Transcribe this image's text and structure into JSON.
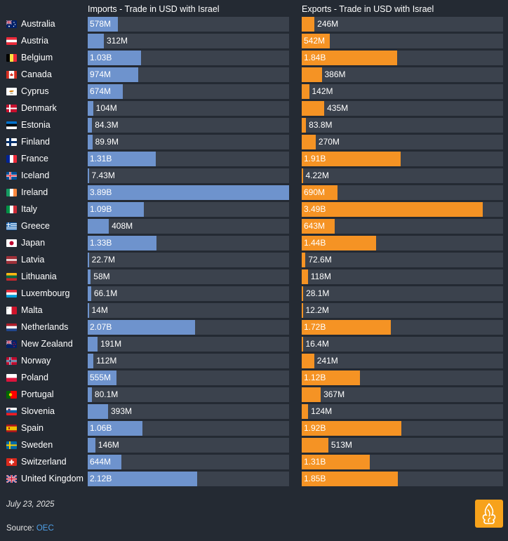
{
  "chart_data": {
    "type": "bar",
    "orientation": "horizontal",
    "series": [
      {
        "name": "Imports - Trade in USD with Israel",
        "color": "#6e93cd",
        "max": 3890000000.0,
        "values": [
          578000000.0,
          312000000.0,
          1030000000.0,
          974000000.0,
          674000000.0,
          104000000.0,
          84300000.0,
          89900000.0,
          1310000000.0,
          7430000.0,
          3890000000.0,
          1090000000.0,
          408000000.0,
          1330000000.0,
          22700000.0,
          58000000.0,
          66100000.0,
          14000000.0,
          2070000000.0,
          191000000.0,
          112000000.0,
          555000000.0,
          80100000.0,
          393000000.0,
          1060000000.0,
          146000000.0,
          644000000.0,
          2120000000.0
        ],
        "labels": [
          "578M",
          "312M",
          "1.03B",
          "974M",
          "674M",
          "104M",
          "84.3M",
          "89.9M",
          "1.31B",
          "7.43M",
          "3.89B",
          "1.09B",
          "408M",
          "1.33B",
          "22.7M",
          "58M",
          "66.1M",
          "14M",
          "2.07B",
          "191M",
          "112M",
          "555M",
          "80.1M",
          "393M",
          "1.06B",
          "146M",
          "644M",
          "2.12B"
        ]
      },
      {
        "name": "Exports - Trade in USD with Israel",
        "color": "#f59324",
        "max": 3890000000.0,
        "values": [
          246000000.0,
          542000000.0,
          1840000000.0,
          386000000.0,
          142000000.0,
          435000000.0,
          83800000.0,
          270000000.0,
          1910000000.0,
          4220000.0,
          690000000.0,
          3490000000.0,
          643000000.0,
          1440000000.0,
          72600000.0,
          118000000.0,
          28100000.0,
          12200000.0,
          1720000000.0,
          16400000.0,
          241000000.0,
          1120000000.0,
          367000000.0,
          124000000.0,
          1920000000.0,
          513000000.0,
          1310000000.0,
          1850000000.0
        ],
        "labels": [
          "246M",
          "542M",
          "1.84B",
          "386M",
          "142M",
          "435M",
          "83.8M",
          "270M",
          "1.91B",
          "4.22M",
          "690M",
          "3.49B",
          "643M",
          "1.44B",
          "72.6M",
          "118M",
          "28.1M",
          "12.2M",
          "1.72B",
          "16.4M",
          "241M",
          "1.12B",
          "367M",
          "124M",
          "1.92B",
          "513M",
          "1.31B",
          "1.85B"
        ]
      }
    ],
    "categories": [
      "Australia",
      "Austria",
      "Belgium",
      "Canada",
      "Cyprus",
      "Denmark",
      "Estonia",
      "Finland",
      "France",
      "Iceland",
      "Ireland",
      "Italy",
      "Greece",
      "Japan",
      "Latvia",
      "Lithuania",
      "Luxembourg",
      "Malta",
      "Netherlands",
      "New Zealand",
      "Norway",
      "Poland",
      "Portugal",
      "Slovenia",
      "Spain",
      "Sweden",
      "Switzerland",
      "United Kingdom"
    ],
    "flags": [
      "australia-flag",
      "austria-flag",
      "belgium-flag",
      "canada-flag",
      "cyprus-flag",
      "denmark-flag",
      "estonia-flag",
      "finland-flag",
      "france-flag",
      "iceland-flag",
      "ireland-flag",
      "italy-flag",
      "greece-flag",
      "japan-flag",
      "latvia-flag",
      "lithuania-flag",
      "luxembourg-flag",
      "malta-flag",
      "netherlands-flag",
      "new-zealand-flag",
      "norway-flag",
      "poland-flag",
      "portugal-flag",
      "slovenia-flag",
      "spain-flag",
      "sweden-flag",
      "switzerland-flag",
      "united-kingdom-flag"
    ]
  },
  "footer": {
    "date": "July 23, 2025",
    "source_label": "Source: ",
    "source_link": "OEC",
    "logo": "al-jazeera-logo"
  },
  "colors": {
    "background": "#242a33",
    "track": "#3b424d",
    "imports": "#6e93cd",
    "exports": "#f59324",
    "logo": "#f7a21b"
  }
}
